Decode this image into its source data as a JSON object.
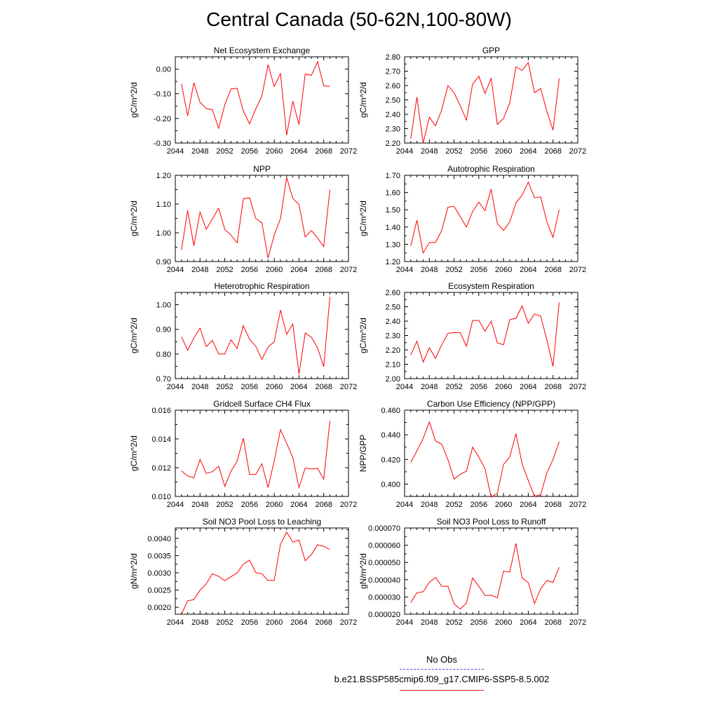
{
  "figure": {
    "title": "Central Canada (50-62N,100-80W)",
    "legend": [
      {
        "label": "No Obs",
        "color": "#4a4ad0",
        "style": "dashed"
      },
      {
        "label": "b.e21.BSSP585cmip6.f09_g17.CMIP6-SSP5-8.5.002",
        "color": "#e02020",
        "style": "solid"
      }
    ],
    "line_color": "#ff0000"
  },
  "chart_data": [
    {
      "type": "line",
      "title": "Net Ecosystem Exchange",
      "ylabel": "gC/m^2/d",
      "xlim": [
        2044,
        2072
      ],
      "xticks": [
        "2044",
        "2048",
        "2052",
        "2056",
        "2060",
        "2064",
        "2068",
        "2072"
      ],
      "ylim": [
        -0.3,
        0.05
      ],
      "yticks": [
        "-0.30",
        "-0.20",
        "-0.10",
        "0.00"
      ],
      "ytick_values": [
        -0.3,
        -0.2,
        -0.1,
        0.0
      ],
      "x": [
        2045,
        2046,
        2047,
        2048,
        2049,
        2050,
        2051,
        2052,
        2053,
        2054,
        2055,
        2056,
        2057,
        2058,
        2059,
        2060,
        2061,
        2062,
        2063,
        2064,
        2065,
        2066,
        2067,
        2068,
        2069
      ],
      "series": [
        {
          "values": [
            -0.06,
            -0.19,
            -0.055,
            -0.135,
            -0.16,
            -0.165,
            -0.24,
            -0.145,
            -0.08,
            -0.078,
            -0.17,
            -0.222,
            -0.162,
            -0.11,
            0.018,
            -0.07,
            -0.018,
            -0.268,
            -0.13,
            -0.225,
            -0.02,
            -0.025,
            0.03,
            -0.068,
            -0.07
          ]
        }
      ]
    },
    {
      "type": "line",
      "title": "GPP",
      "ylabel": "gC/m^2/d",
      "xlim": [
        2044,
        2072
      ],
      "xticks": [
        "2044",
        "2048",
        "2052",
        "2056",
        "2060",
        "2064",
        "2068",
        "2072"
      ],
      "ylim": [
        2.2,
        2.8
      ],
      "yticks": [
        "2.20",
        "2.30",
        "2.40",
        "2.50",
        "2.60",
        "2.70",
        "2.80"
      ],
      "ytick_values": [
        2.2,
        2.3,
        2.4,
        2.5,
        2.6,
        2.7,
        2.8
      ],
      "x": [
        2045,
        2046,
        2047,
        2048,
        2049,
        2050,
        2051,
        2052,
        2053,
        2054,
        2055,
        2056,
        2057,
        2058,
        2059,
        2060,
        2061,
        2062,
        2063,
        2064,
        2065,
        2066,
        2067,
        2068,
        2069
      ],
      "series": [
        {
          "values": [
            2.23,
            2.52,
            2.2,
            2.38,
            2.32,
            2.43,
            2.6,
            2.55,
            2.46,
            2.36,
            2.61,
            2.665,
            2.545,
            2.65,
            2.33,
            2.37,
            2.48,
            2.73,
            2.705,
            2.76,
            2.55,
            2.58,
            2.42,
            2.29,
            2.65
          ]
        }
      ]
    },
    {
      "type": "line",
      "title": "NPP",
      "ylabel": "gC/m^2/d",
      "xlim": [
        2044,
        2072
      ],
      "xticks": [
        "2044",
        "2048",
        "2052",
        "2056",
        "2060",
        "2064",
        "2068",
        "2072"
      ],
      "ylim": [
        0.9,
        1.2
      ],
      "yticks": [
        "0.90",
        "1.00",
        "1.10",
        "1.20"
      ],
      "ytick_values": [
        0.9,
        1.0,
        1.1,
        1.2
      ],
      "x": [
        2045,
        2046,
        2047,
        2048,
        2049,
        2050,
        2051,
        2052,
        2053,
        2054,
        2055,
        2056,
        2057,
        2058,
        2059,
        2060,
        2061,
        2062,
        2063,
        2064,
        2065,
        2066,
        2067,
        2068,
        2069
      ],
      "series": [
        {
          "values": [
            0.94,
            1.078,
            0.955,
            1.072,
            1.012,
            1.048,
            1.085,
            1.012,
            0.992,
            0.965,
            1.118,
            1.122,
            1.05,
            1.035,
            0.912,
            0.992,
            1.05,
            1.192,
            1.12,
            1.098,
            0.985,
            1.008,
            0.982,
            0.952,
            1.15
          ]
        }
      ]
    },
    {
      "type": "line",
      "title": "Autotrophic Respiration",
      "ylabel": "gC/m^2/d",
      "xlim": [
        2044,
        2072
      ],
      "xticks": [
        "2044",
        "2048",
        "2052",
        "2056",
        "2060",
        "2064",
        "2068",
        "2072"
      ],
      "ylim": [
        1.2,
        1.7
      ],
      "yticks": [
        "1.20",
        "1.30",
        "1.40",
        "1.50",
        "1.60",
        "1.70"
      ],
      "ytick_values": [
        1.2,
        1.3,
        1.4,
        1.5,
        1.6,
        1.7
      ],
      "x": [
        2045,
        2046,
        2047,
        2048,
        2049,
        2050,
        2051,
        2052,
        2053,
        2054,
        2055,
        2056,
        2057,
        2058,
        2059,
        2060,
        2061,
        2062,
        2063,
        2064,
        2065,
        2066,
        2067,
        2068,
        2069
      ],
      "series": [
        {
          "values": [
            1.29,
            1.44,
            1.25,
            1.31,
            1.31,
            1.38,
            1.515,
            1.52,
            1.46,
            1.4,
            1.49,
            1.545,
            1.495,
            1.62,
            1.42,
            1.38,
            1.43,
            1.54,
            1.585,
            1.66,
            1.57,
            1.575,
            1.43,
            1.34,
            1.5
          ]
        }
      ]
    },
    {
      "type": "line",
      "title": "Heterotrophic Respiration",
      "ylabel": "gC/m^2/d",
      "xlim": [
        2044,
        2072
      ],
      "xticks": [
        "2044",
        "2048",
        "2052",
        "2056",
        "2060",
        "2064",
        "2068",
        "2072"
      ],
      "ylim": [
        0.7,
        1.05
      ],
      "yticks": [
        "0.70",
        "0.80",
        "0.90",
        "1.00"
      ],
      "ytick_values": [
        0.7,
        0.8,
        0.9,
        1.0
      ],
      "x": [
        2045,
        2046,
        2047,
        2048,
        2049,
        2050,
        2051,
        2052,
        2053,
        2054,
        2055,
        2056,
        2057,
        2058,
        2059,
        2060,
        2061,
        2062,
        2063,
        2064,
        2065,
        2066,
        2067,
        2068,
        2069
      ],
      "series": [
        {
          "values": [
            0.87,
            0.815,
            0.865,
            0.905,
            0.83,
            0.855,
            0.8,
            0.8,
            0.858,
            0.822,
            0.915,
            0.86,
            0.832,
            0.778,
            0.828,
            0.85,
            0.978,
            0.88,
            0.922,
            0.718,
            0.885,
            0.868,
            0.825,
            0.748,
            1.032
          ]
        }
      ]
    },
    {
      "type": "line",
      "title": "Ecosystem Respiration",
      "ylabel": "gC/m^2/d",
      "xlim": [
        2044,
        2072
      ],
      "xticks": [
        "2044",
        "2048",
        "2052",
        "2056",
        "2060",
        "2064",
        "2068",
        "2072"
      ],
      "ylim": [
        2.0,
        2.6
      ],
      "yticks": [
        "2.00",
        "2.10",
        "2.20",
        "2.30",
        "2.40",
        "2.50",
        "2.60"
      ],
      "ytick_values": [
        2.0,
        2.1,
        2.2,
        2.3,
        2.4,
        2.5,
        2.6
      ],
      "x": [
        2045,
        2046,
        2047,
        2048,
        2049,
        2050,
        2051,
        2052,
        2053,
        2054,
        2055,
        2056,
        2057,
        2058,
        2059,
        2060,
        2061,
        2062,
        2063,
        2064,
        2065,
        2066,
        2067,
        2068,
        2069
      ],
      "series": [
        {
          "values": [
            2.165,
            2.26,
            2.115,
            2.215,
            2.14,
            2.235,
            2.315,
            2.32,
            2.32,
            2.225,
            2.405,
            2.405,
            2.33,
            2.4,
            2.25,
            2.235,
            2.41,
            2.42,
            2.505,
            2.385,
            2.45,
            2.435,
            2.27,
            2.085,
            2.53
          ]
        }
      ]
    },
    {
      "type": "line",
      "title": "Gridcell Surface CH4 Flux",
      "ylabel": "gC/m^2/d",
      "xlim": [
        2044,
        2072
      ],
      "xticks": [
        "2044",
        "2048",
        "2052",
        "2056",
        "2060",
        "2064",
        "2068",
        "2072"
      ],
      "ylim": [
        0.01,
        0.016
      ],
      "yticks": [
        "0.010",
        "0.012",
        "0.014",
        "0.016"
      ],
      "ytick_values": [
        0.01,
        0.012,
        0.014,
        0.016
      ],
      "x": [
        2045,
        2046,
        2047,
        2048,
        2049,
        2050,
        2051,
        2052,
        2053,
        2054,
        2055,
        2056,
        2057,
        2058,
        2059,
        2060,
        2061,
        2062,
        2063,
        2064,
        2065,
        2066,
        2067,
        2068,
        2069
      ],
      "series": [
        {
          "values": [
            0.01178,
            0.01143,
            0.0113,
            0.01258,
            0.0116,
            0.01172,
            0.0121,
            0.0107,
            0.01175,
            0.01245,
            0.01405,
            0.01153,
            0.01153,
            0.01227,
            0.01062,
            0.01248,
            0.01465,
            0.0137,
            0.0127,
            0.01062,
            0.01198,
            0.0119,
            0.01195,
            0.0112,
            0.01525
          ]
        }
      ]
    },
    {
      "type": "line",
      "title": "Carbon Use Efficiency (NPP/GPP)",
      "ylabel": "NPP/GPP",
      "xlim": [
        2044,
        2072
      ],
      "xticks": [
        "2044",
        "2048",
        "2052",
        "2056",
        "2060",
        "2064",
        "2068",
        "2072"
      ],
      "ylim": [
        0.39,
        0.46
      ],
      "yticks": [
        "0.400",
        "0.420",
        "0.440",
        "0.460"
      ],
      "ytick_values": [
        0.4,
        0.42,
        0.44,
        0.46
      ],
      "x": [
        2045,
        2046,
        2047,
        2048,
        2049,
        2050,
        2051,
        2052,
        2053,
        2054,
        2055,
        2056,
        2057,
        2058,
        2059,
        2060,
        2061,
        2062,
        2063,
        2064,
        2065,
        2066,
        2067,
        2068,
        2069
      ],
      "series": [
        {
          "values": [
            0.4175,
            0.427,
            0.437,
            0.4505,
            0.435,
            0.4325,
            0.42,
            0.404,
            0.408,
            0.4105,
            0.43,
            0.422,
            0.4125,
            0.3895,
            0.3925,
            0.416,
            0.422,
            0.441,
            0.4165,
            0.403,
            0.39,
            0.3915,
            0.409,
            0.42,
            0.4345
          ]
        }
      ]
    },
    {
      "type": "line",
      "title": "Soil NO3 Pool Loss to Leaching",
      "ylabel": "gN/m^2/d",
      "xlim": [
        2044,
        2072
      ],
      "xticks": [
        "2044",
        "2048",
        "2052",
        "2056",
        "2060",
        "2064",
        "2068",
        "2072"
      ],
      "ylim": [
        0.0018,
        0.0043
      ],
      "yticks": [
        "0.0020",
        "0.0025",
        "0.0030",
        "0.0035",
        "0.0040"
      ],
      "ytick_values": [
        0.002,
        0.0025,
        0.003,
        0.0035,
        0.004
      ],
      "x": [
        2045,
        2046,
        2047,
        2048,
        2049,
        2050,
        2051,
        2052,
        2053,
        2054,
        2055,
        2056,
        2057,
        2058,
        2059,
        2060,
        2061,
        2062,
        2063,
        2064,
        2065,
        2066,
        2067,
        2068,
        2069
      ],
      "series": [
        {
          "values": [
            0.0018,
            0.00219,
            0.00222,
            0.0025,
            0.00268,
            0.00297,
            0.0029,
            0.00277,
            0.00289,
            0.003,
            0.00325,
            0.00337,
            0.00301,
            0.00297,
            0.00278,
            0.00278,
            0.00383,
            0.00418,
            0.00389,
            0.00395,
            0.00335,
            0.00353,
            0.00381,
            0.00377,
            0.00367
          ]
        }
      ]
    },
    {
      "type": "line",
      "title": "Soil NO3 Pool Loss to Runoff",
      "ylabel": "gN/m^2/d",
      "xlim": [
        2044,
        2072
      ],
      "xticks": [
        "2044",
        "2048",
        "2052",
        "2056",
        "2060",
        "2064",
        "2068",
        "2072"
      ],
      "ylim": [
        2e-05,
        7e-05
      ],
      "yticks": [
        "0.000020",
        "0.000030",
        "0.000040",
        "0.000050",
        "0.000060",
        "0.000070"
      ],
      "ytick_values": [
        2e-05,
        3e-05,
        4e-05,
        5e-05,
        6e-05,
        7e-05
      ],
      "x": [
        2045,
        2046,
        2047,
        2048,
        2049,
        2050,
        2051,
        2052,
        2053,
        2054,
        2055,
        2056,
        2057,
        2058,
        2059,
        2060,
        2061,
        2062,
        2063,
        2064,
        2065,
        2066,
        2067,
        2068,
        2069
      ],
      "series": [
        {
          "values": [
            2.68e-05,
            3.25e-05,
            3.3e-05,
            3.85e-05,
            4.13e-05,
            3.62e-05,
            3.62e-05,
            2.6e-05,
            2.3e-05,
            2.65e-05,
            4.1e-05,
            3.62e-05,
            3.08e-05,
            3.1e-05,
            2.95e-05,
            4.5e-05,
            4.45e-05,
            6.1e-05,
            4.1e-05,
            3.83e-05,
            2.62e-05,
            3.48e-05,
            3.95e-05,
            3.85e-05,
            4.72e-05
          ]
        }
      ]
    }
  ]
}
